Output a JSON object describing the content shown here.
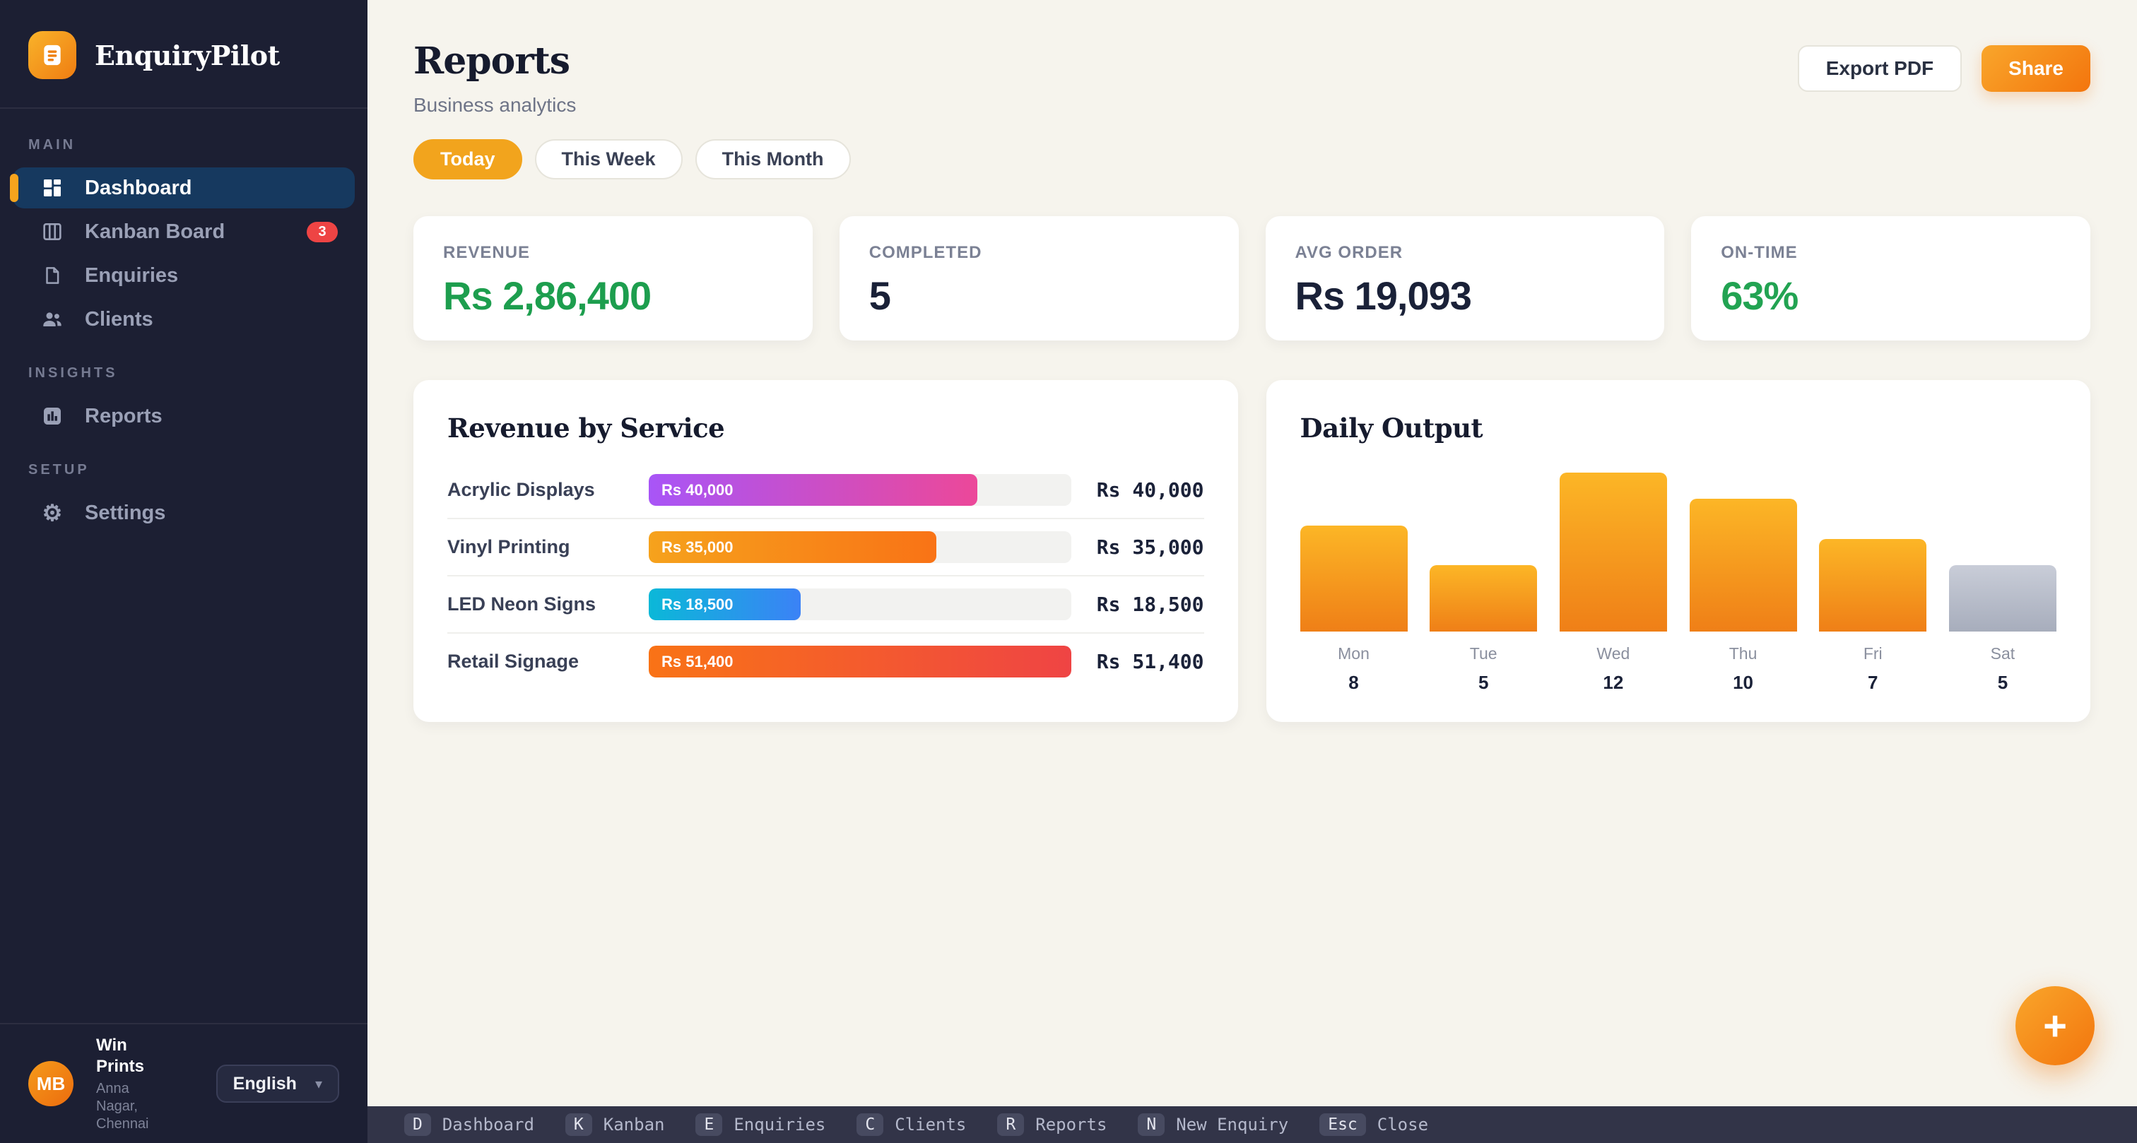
{
  "app": {
    "name": "EnquiryPilot"
  },
  "sidebar": {
    "sections": [
      {
        "label": "MAIN"
      },
      {
        "label": "INSIGHTS"
      },
      {
        "label": "SETUP"
      }
    ],
    "items": [
      {
        "label": "Dashboard",
        "active": true
      },
      {
        "label": "Kanban Board",
        "badge": "3"
      },
      {
        "label": "Enquiries"
      },
      {
        "label": "Clients"
      },
      {
        "label": "Reports"
      },
      {
        "label": "Settings"
      }
    ],
    "user": {
      "initials": "MB",
      "name": "Win Prints",
      "location": "Anna Nagar, Chennai",
      "language": "English",
      "caret": "▾"
    }
  },
  "header": {
    "title": "Reports",
    "subtitle": "Business analytics",
    "export_label": "Export PDF",
    "share_label": "Share"
  },
  "filters": [
    {
      "label": "Today",
      "active": true
    },
    {
      "label": "This Week",
      "active": false
    },
    {
      "label": "This Month",
      "active": false
    }
  ],
  "kpis": [
    {
      "label": "REVENUE",
      "value": "Rs 2,86,400",
      "color": "#1d9e4e"
    },
    {
      "label": "COMPLETED",
      "value": "5",
      "color": "#1a2138"
    },
    {
      "label": "AVG ORDER",
      "value": "Rs 19,093",
      "color": "#1a2138"
    },
    {
      "label": "ON-TIME",
      "value": "63%",
      "color": "#22a352"
    }
  ],
  "chart_data": [
    {
      "type": "bar",
      "orientation": "horizontal",
      "title": "Revenue by Service",
      "categories": [
        "Acrylic Displays",
        "Vinyl Printing",
        "LED Neon Signs",
        "Retail Signage"
      ],
      "values": [
        40000,
        35000,
        18500,
        51400
      ],
      "value_labels": [
        "Rs 40,000",
        "Rs 35,000",
        "Rs 18,500",
        "Rs 51,400"
      ],
      "bar_labels": [
        "Rs 40,000",
        "Rs 35,000",
        "Rs 18,500",
        "Rs 51,400"
      ],
      "max": 51400,
      "track_color": "#f2f2f0",
      "bar_gradients": [
        [
          "#a855f7",
          "#ec4899"
        ],
        [
          "#f6a21c",
          "#f97316"
        ],
        [
          "#0bb8d8",
          "#3b82f6"
        ],
        [
          "#f97316",
          "#ef4444"
        ]
      ]
    },
    {
      "type": "bar",
      "orientation": "vertical",
      "title": "Daily Output",
      "categories": [
        "Mon",
        "Tue",
        "Wed",
        "Thu",
        "Fri",
        "Sat"
      ],
      "values": [
        8,
        5,
        12,
        10,
        7,
        5
      ],
      "ymax": 12,
      "bar_gradient": [
        "#fcb626",
        "#ef7f17"
      ],
      "muted_gradient": [
        "#c9cdd8",
        "#a7adbc"
      ],
      "muted": [
        false,
        false,
        false,
        false,
        false,
        true
      ]
    }
  ],
  "statusbar": {
    "shortcuts": [
      {
        "key": "D",
        "label": "Dashboard"
      },
      {
        "key": "K",
        "label": "Kanban"
      },
      {
        "key": "E",
        "label": "Enquiries"
      },
      {
        "key": "C",
        "label": "Clients"
      },
      {
        "key": "R",
        "label": "Reports"
      },
      {
        "key": "N",
        "label": "New Enquiry"
      },
      {
        "key": "Esc",
        "label": "Close"
      }
    ]
  },
  "fab": {
    "label": "+"
  }
}
